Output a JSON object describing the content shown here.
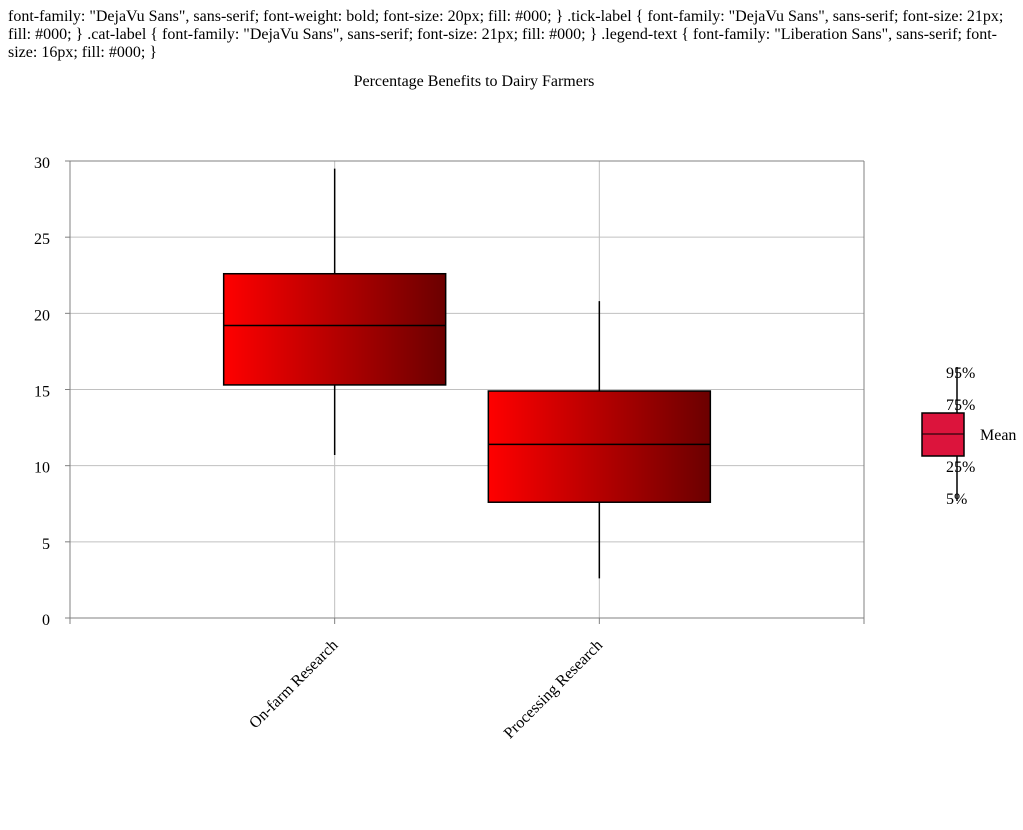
{
  "chart_data": {
    "type": "box",
    "title": "Percentage Benefits to Dairy Farmers",
    "xlabel": "",
    "ylabel": "",
    "ylim": [
      0,
      30
    ],
    "y_ticks": [
      0,
      5,
      10,
      15,
      20,
      25,
      30
    ],
    "grid": true,
    "categories": [
      "On-farm Research",
      "Processing Research"
    ],
    "series": [
      {
        "p5": 10.7,
        "p25": 15.3,
        "mean": 19.2,
        "p75": 22.6,
        "p95": 29.5
      },
      {
        "p5": 2.6,
        "p25": 7.6,
        "mean": 11.4,
        "p75": 14.9,
        "p95": 20.8
      }
    ],
    "legend": {
      "placement": "right",
      "labels": {
        "p95": "95%",
        "p75": "75%",
        "mean": "Mean",
        "p25": "25%",
        "p5": "5%"
      }
    },
    "colors": {
      "box_start": "#ff0000",
      "box_end": "#6b0000",
      "legend_box": "#dc143c",
      "grid": "#c0c0c0",
      "axis": "#808080"
    }
  }
}
